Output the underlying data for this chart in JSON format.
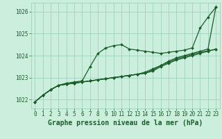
{
  "background_color": "#cceedd",
  "grid_color": "#99ccbb",
  "line_color": "#1a5c2a",
  "xlabel": "Graphe pression niveau de la mer (hPa)",
  "ylim": [
    1021.6,
    1026.4
  ],
  "xlim": [
    -0.5,
    23.5
  ],
  "xticks": [
    0,
    1,
    2,
    3,
    4,
    5,
    6,
    7,
    8,
    9,
    10,
    11,
    12,
    13,
    14,
    15,
    16,
    17,
    18,
    19,
    20,
    21,
    22,
    23
  ],
  "yticks": [
    1022,
    1023,
    1024,
    1025,
    1026
  ],
  "series": [
    [
      1021.9,
      1022.2,
      1022.45,
      1022.65,
      1022.75,
      1022.8,
      1022.85,
      1023.5,
      1024.1,
      1024.35,
      1024.45,
      1024.5,
      1024.3,
      1024.25,
      1024.2,
      1024.15,
      1024.1,
      1024.15,
      1024.2,
      1024.25,
      1024.35,
      1025.25,
      1025.75,
      1026.2
    ],
    [
      1021.9,
      1022.2,
      1022.45,
      1022.65,
      1022.7,
      1022.75,
      1022.8,
      1022.85,
      1022.9,
      1022.95,
      1023.0,
      1023.05,
      1023.1,
      1023.15,
      1023.2,
      1023.35,
      1023.55,
      1023.75,
      1023.9,
      1024.0,
      1024.1,
      1024.2,
      1024.3,
      1026.2
    ],
    [
      1021.9,
      1022.2,
      1022.45,
      1022.65,
      1022.7,
      1022.75,
      1022.8,
      1022.85,
      1022.9,
      1022.95,
      1023.0,
      1023.05,
      1023.1,
      1023.15,
      1023.2,
      1023.3,
      1023.5,
      1023.65,
      1023.8,
      1023.9,
      1024.0,
      1024.1,
      1024.2,
      1024.3
    ],
    [
      1021.9,
      1022.2,
      1022.45,
      1022.65,
      1022.7,
      1022.75,
      1022.8,
      1022.85,
      1022.9,
      1022.95,
      1023.0,
      1023.05,
      1023.1,
      1023.15,
      1023.25,
      1023.4,
      1023.55,
      1023.7,
      1023.85,
      1023.95,
      1024.05,
      1024.15,
      1024.22,
      1024.28
    ]
  ],
  "marker": "D",
  "marker_size": 2.0,
  "linewidth": 0.9,
  "xlabel_fontsize": 7,
  "tick_fontsize": 5.5
}
